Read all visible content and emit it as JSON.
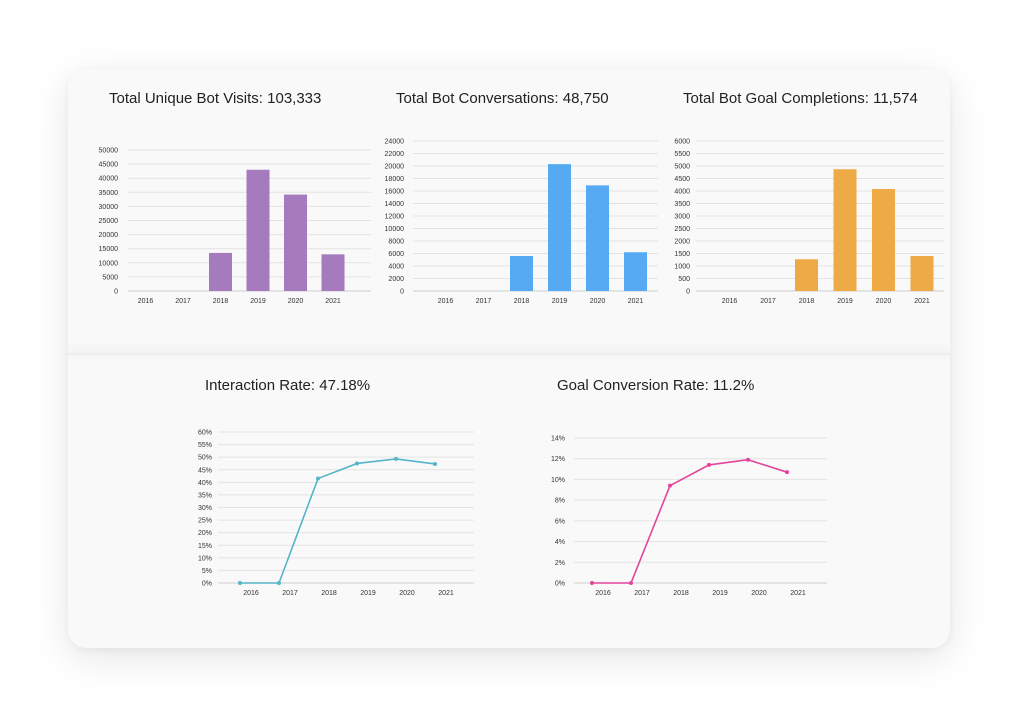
{
  "chart_data": [
    {
      "type": "bar",
      "title": "Total Unique Bot Visits: 103,333",
      "categories": [
        "2016",
        "2017",
        "2018",
        "2019",
        "2020",
        "2021"
      ],
      "values": [
        0,
        0,
        13500,
        43000,
        34200,
        13000
      ],
      "ylim": [
        0,
        50000
      ],
      "yticks": [
        0,
        5000,
        10000,
        15000,
        20000,
        25000,
        30000,
        35000,
        40000,
        45000,
        50000
      ],
      "ytick_labels": [
        "0",
        "5000",
        "10000",
        "15000",
        "20000",
        "25000",
        "30000",
        "35000",
        "40000",
        "45000",
        "50000"
      ],
      "color": "#a57bbd",
      "grid": true
    },
    {
      "type": "bar",
      "title": "Total Bot Conversations: 48,750",
      "categories": [
        "2016",
        "2017",
        "2018",
        "2019",
        "2020",
        "2021"
      ],
      "values": [
        0,
        0,
        5600,
        20300,
        16900,
        6200
      ],
      "ylim": [
        0,
        24000
      ],
      "yticks": [
        0,
        2000,
        4000,
        6000,
        8000,
        10000,
        12000,
        14000,
        16000,
        18000,
        20000,
        22000,
        24000
      ],
      "ytick_labels": [
        "0",
        "2000",
        "4000",
        "6000",
        "8000",
        "10000",
        "12000",
        "14000",
        "16000",
        "18000",
        "20000",
        "22000",
        "24000"
      ],
      "color": "#56a9f3",
      "grid": true
    },
    {
      "type": "bar",
      "title": "Total Bot Goal Completions: 11,574",
      "categories": [
        "2016",
        "2017",
        "2018",
        "2019",
        "2020",
        "2021"
      ],
      "values": [
        0,
        0,
        1270,
        4870,
        4080,
        1400
      ],
      "ylim": [
        0,
        6000
      ],
      "yticks": [
        0,
        500,
        1000,
        1500,
        2000,
        2500,
        3000,
        3500,
        4000,
        4500,
        5000,
        5500,
        6000
      ],
      "ytick_labels": [
        "0",
        "500",
        "1000",
        "1500",
        "2000",
        "2500",
        "3000",
        "3500",
        "4000",
        "4500",
        "5000",
        "5500",
        "6000"
      ],
      "color": "#eeaa45",
      "grid": true
    },
    {
      "type": "line",
      "title": "Interaction Rate: 47.18%",
      "categories": [
        "2016",
        "2017",
        "2018",
        "2019",
        "2020",
        "2021"
      ],
      "values": [
        0,
        0,
        41.5,
        47.5,
        49.3,
        47.3
      ],
      "ylim": [
        0,
        60
      ],
      "yticks": [
        0,
        5,
        10,
        15,
        20,
        25,
        30,
        35,
        40,
        45,
        50,
        55,
        60
      ],
      "ytick_labels": [
        "0%",
        "5%",
        "10%",
        "15%",
        "20%",
        "25%",
        "30%",
        "35%",
        "40%",
        "45%",
        "50%",
        "55%",
        "60%"
      ],
      "color": "#55b4c8",
      "grid": true
    },
    {
      "type": "line",
      "title": "Goal Conversion Rate: 11.2%",
      "categories": [
        "2016",
        "2017",
        "2018",
        "2019",
        "2020",
        "2021"
      ],
      "values": [
        0,
        0,
        9.4,
        11.4,
        11.9,
        10.7
      ],
      "ylim": [
        0,
        14
      ],
      "yticks": [
        0,
        2,
        4,
        6,
        8,
        10,
        12,
        14
      ],
      "ytick_labels": [
        "0%",
        "2%",
        "4%",
        "6%",
        "8%",
        "10%",
        "12%",
        "14%"
      ],
      "color": "#e2449c",
      "grid": true
    }
  ]
}
